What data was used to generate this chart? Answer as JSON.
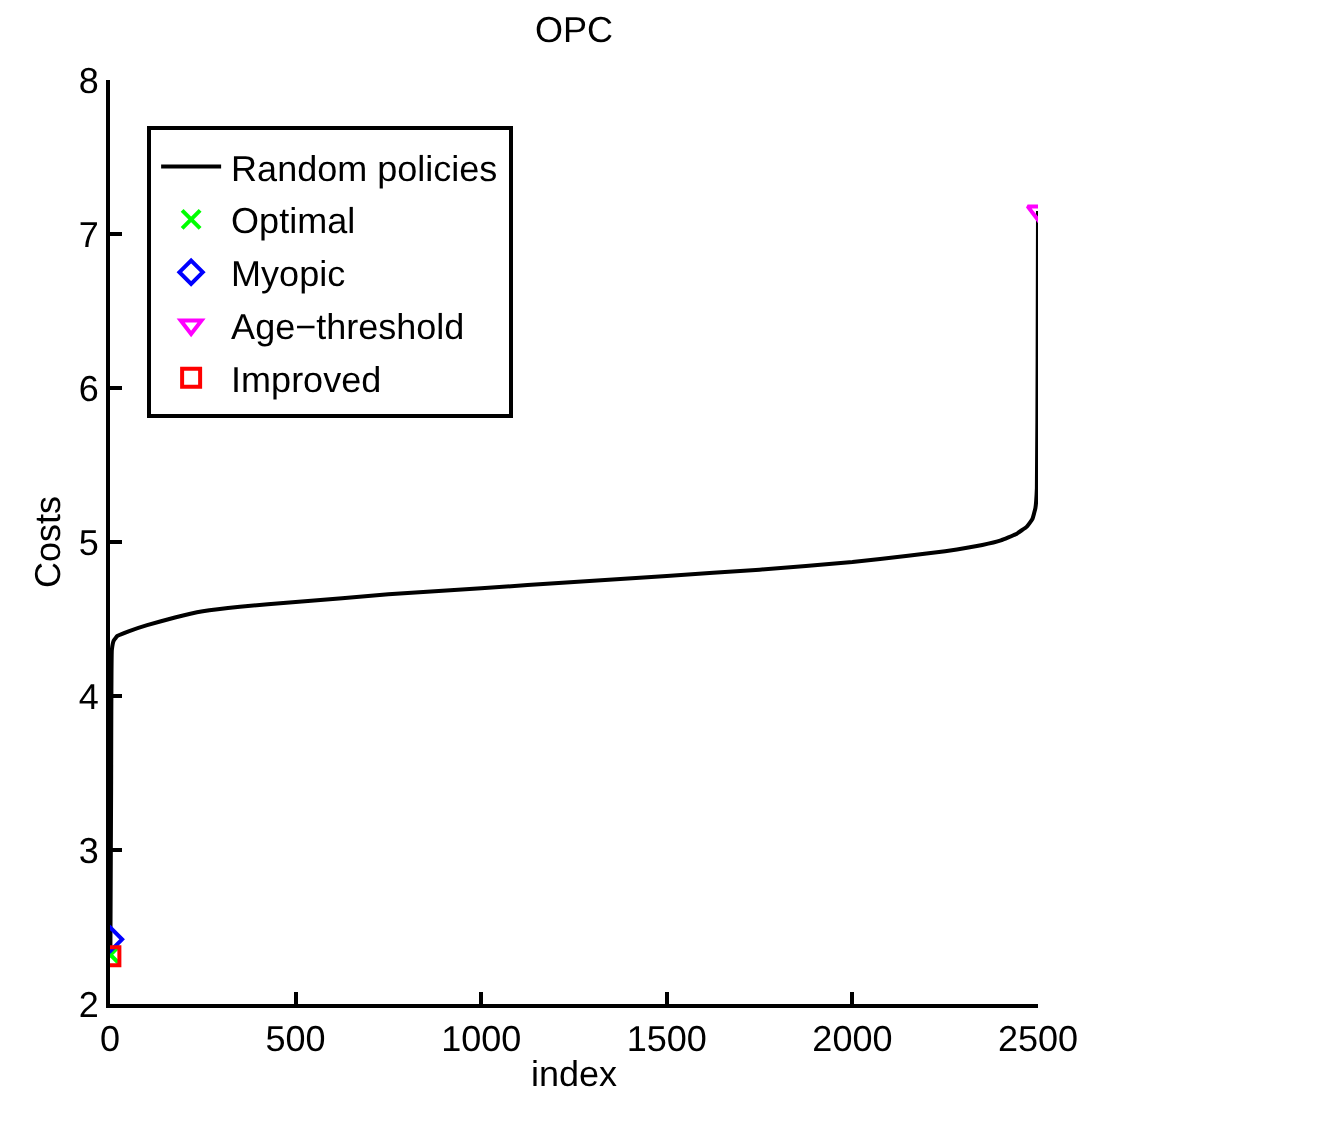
{
  "chart_data": {
    "type": "line",
    "title": "OPC",
    "xlabel": "index",
    "ylabel": "Costs",
    "xlim": [
      0,
      2500
    ],
    "ylim": [
      2,
      8
    ],
    "xticks": [
      0,
      500,
      1000,
      1500,
      2000,
      2500
    ],
    "yticks": [
      2,
      3,
      4,
      5,
      6,
      7,
      8
    ],
    "grid": false,
    "legend": "top left",
    "series": [
      {
        "name": "Random policies",
        "color": "#000000",
        "marker": "none",
        "line_style": "solid",
        "x": [
          1,
          3,
          5,
          10,
          20,
          50,
          100,
          175,
          250,
          350,
          500,
          750,
          1000,
          1250,
          1500,
          1750,
          2000,
          2150,
          2250,
          2350,
          2400,
          2440,
          2470,
          2485,
          2493,
          2497,
          2499,
          2500
        ],
        "values": [
          2.31,
          3.4,
          4.3,
          4.36,
          4.39,
          4.42,
          4.46,
          4.51,
          4.55,
          4.58,
          4.61,
          4.66,
          4.7,
          4.74,
          4.78,
          4.82,
          4.87,
          4.91,
          4.94,
          4.98,
          5.01,
          5.05,
          5.1,
          5.15,
          5.22,
          5.35,
          6.2,
          7.15
        ]
      },
      {
        "name": "Optimal",
        "type": "scatter",
        "color": "#00ff00",
        "marker": "cross",
        "x": [
          1
        ],
        "values": [
          2.32
        ]
      },
      {
        "name": "Myopic",
        "type": "scatter",
        "color": "#0000ff",
        "marker": "diamond",
        "x": [
          1
        ],
        "values": [
          2.42
        ]
      },
      {
        "name": "Age−threshold",
        "type": "scatter",
        "color": "#ff00ff",
        "marker": "triangle",
        "x": [
          2500
        ],
        "values": [
          7.15
        ]
      },
      {
        "name": "Improved",
        "type": "scatter",
        "color": "#ff0000",
        "marker": "square",
        "x": [
          1
        ],
        "values": [
          2.31
        ]
      }
    ]
  }
}
